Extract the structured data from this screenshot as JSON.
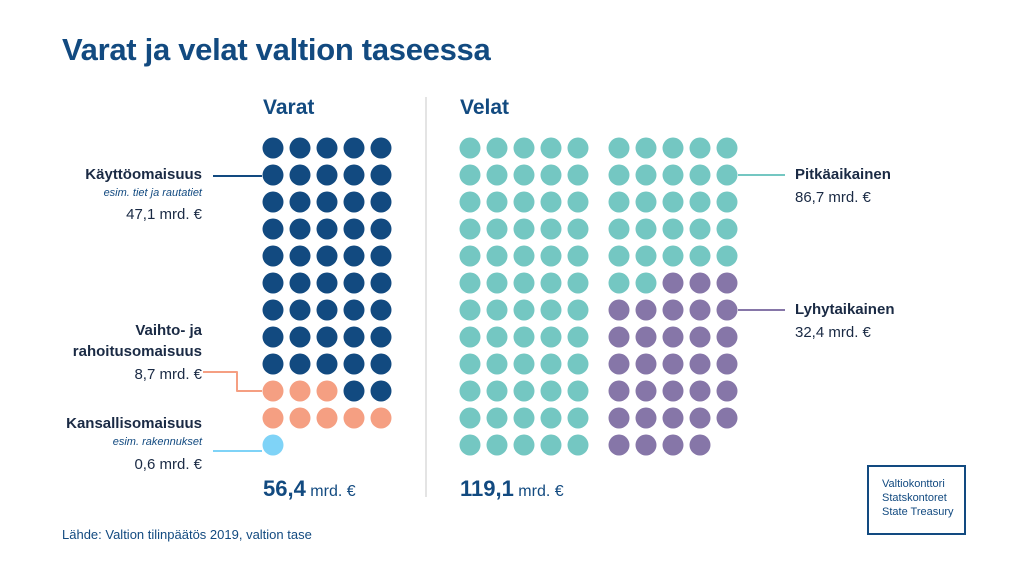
{
  "title": "Varat ja velat valtion taseessa",
  "source": "Lähde: Valtion tilinpäätös 2019, valtion tase",
  "logo": [
    "Valtiokonttori",
    "Statskontoret",
    "State Treasury"
  ],
  "chart_data": {
    "type": "waffle",
    "unit": "mrd. €",
    "colors": {
      "kaytto": "#124a80",
      "vaihto": "#f59f82",
      "kansallis": "#7fd3f7",
      "pitka": "#74c7c2",
      "lyhyt": "#8676a8"
    },
    "groups": [
      {
        "heading": "Varat",
        "total_value": "56,4",
        "total_unit": "mrd. €",
        "series": [
          {
            "key": "kaytto",
            "name": "Käyttöomaisuus",
            "note": "esim. tiet ja rautatiet",
            "value_label": "47,1 mrd. €",
            "value": 47.1,
            "dots": 47
          },
          {
            "key": "vaihto",
            "name_lines": [
              "Vaihto- ja",
              "rahoitusomaisuus"
            ],
            "value_label": "8,7 mrd. €",
            "value": 8.7,
            "dots": 8
          },
          {
            "key": "kansallis",
            "name": "Kansallisomaisuus",
            "note": "esim. rakennukset",
            "value_label": "0,6 mrd. €",
            "value": 0.6,
            "dots": 1
          }
        ]
      },
      {
        "heading": "Velat",
        "total_value": "119,1",
        "total_unit": "mrd. €",
        "series": [
          {
            "key": "pitka",
            "name": "Pitkäaikainen",
            "value_label": "86,7 mrd. €",
            "value": 86.7,
            "dots": 87
          },
          {
            "key": "lyhyt",
            "name": "Lyhytaikainen",
            "value_label": "32,4 mrd. €",
            "value": 32.4,
            "dots": 32
          }
        ]
      }
    ]
  }
}
